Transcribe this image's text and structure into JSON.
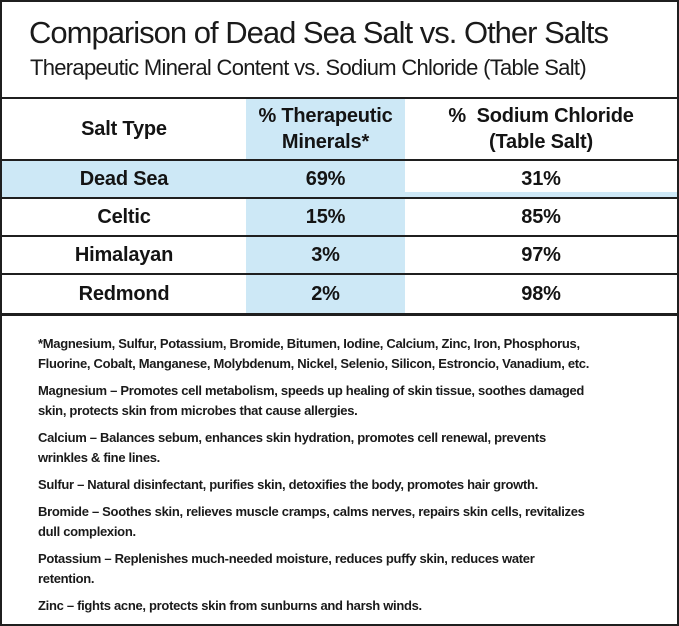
{
  "header": {
    "title": "Comparison of Dead Sea Salt vs. Other Salts",
    "subtitle": "Therapeutic Mineral Content vs. Sodium Chloride (Table Salt)"
  },
  "table": {
    "headers": {
      "salt": "Salt Type",
      "therapeutic": "% Therapeutic\nMinerals*",
      "sodium": "%  Sodium Chloride\n(Table Salt)"
    },
    "rows": [
      {
        "salt": "Dead Sea",
        "therapeutic": "69%",
        "sodium": "31%"
      },
      {
        "salt": "Celtic",
        "therapeutic": "15%",
        "sodium": "85%"
      },
      {
        "salt": "Himalayan",
        "therapeutic": "3%",
        "sodium": "97%"
      },
      {
        "salt": "Redmond",
        "therapeutic": "2%",
        "sodium": "98%"
      }
    ]
  },
  "notes": {
    "paragraphs": [
      "*Magnesium, Sulfur, Potassium, Bromide, Bitumen, Iodine, Calcium, Zinc, Iron, Phosphorus,\nFluorine, Cobalt, Manganese, Molybdenum, Nickel, Selenio, Silicon, Estroncio, Vanadium, etc.",
      "Magnesium – Promotes cell metabolism, speeds up healing of skin tissue, soothes damaged\nskin, protects skin from microbes that cause allergies.",
      "Calcium – Balances sebum, enhances skin hydration, promotes cell renewal, prevents\nwrinkles & fine lines.",
      "Sulfur – Natural disinfectant, purifies skin, detoxifies the body, promotes hair growth.",
      "Bromide – Soothes skin, relieves muscle cramps, calms nerves, repairs skin cells, revitalizes\ndull complexion.",
      "Potassium – Replenishes much-needed moisture, reduces puffy skin, reduces water\nretention.",
      "Zinc – fights acne, protects skin from sunburns and harsh winds."
    ]
  },
  "colors": {
    "highlight_blue": "#cde8f6",
    "border_black": "#1f1f1f",
    "text": "#141414"
  },
  "chart_data": {
    "type": "table",
    "title": "Comparison of Dead Sea Salt vs. Other Salts",
    "subtitle": "Therapeutic Mineral Content vs. Sodium Chloride (Table Salt)",
    "columns": [
      "Salt Type",
      "% Therapeutic Minerals*",
      "% Sodium Chloride (Table Salt)"
    ],
    "rows": [
      {
        "salt_type": "Dead Sea",
        "therapeutic_minerals_pct": 69,
        "sodium_chloride_pct": 31,
        "highlighted": true
      },
      {
        "salt_type": "Celtic",
        "therapeutic_minerals_pct": 15,
        "sodium_chloride_pct": 85,
        "highlighted": false
      },
      {
        "salt_type": "Himalayan",
        "therapeutic_minerals_pct": 3,
        "sodium_chloride_pct": 97,
        "highlighted": false
      },
      {
        "salt_type": "Redmond",
        "therapeutic_minerals_pct": 2,
        "sodium_chloride_pct": 98,
        "highlighted": false
      }
    ],
    "footnote": "*Magnesium, Sulfur, Potassium, Bromide, Bitumen, Iodine, Calcium, Zinc, Iron, Phosphorus, Fluorine, Cobalt, Manganese, Molybdenum, Nickel, Selenio, Silicon, Estroncio, Vanadium, etc.",
    "layout_hints": {
      "minerals_column_background": "#cde8f6",
      "highlight_row": "Dead Sea",
      "grid": "horizontal-lines-only"
    }
  }
}
